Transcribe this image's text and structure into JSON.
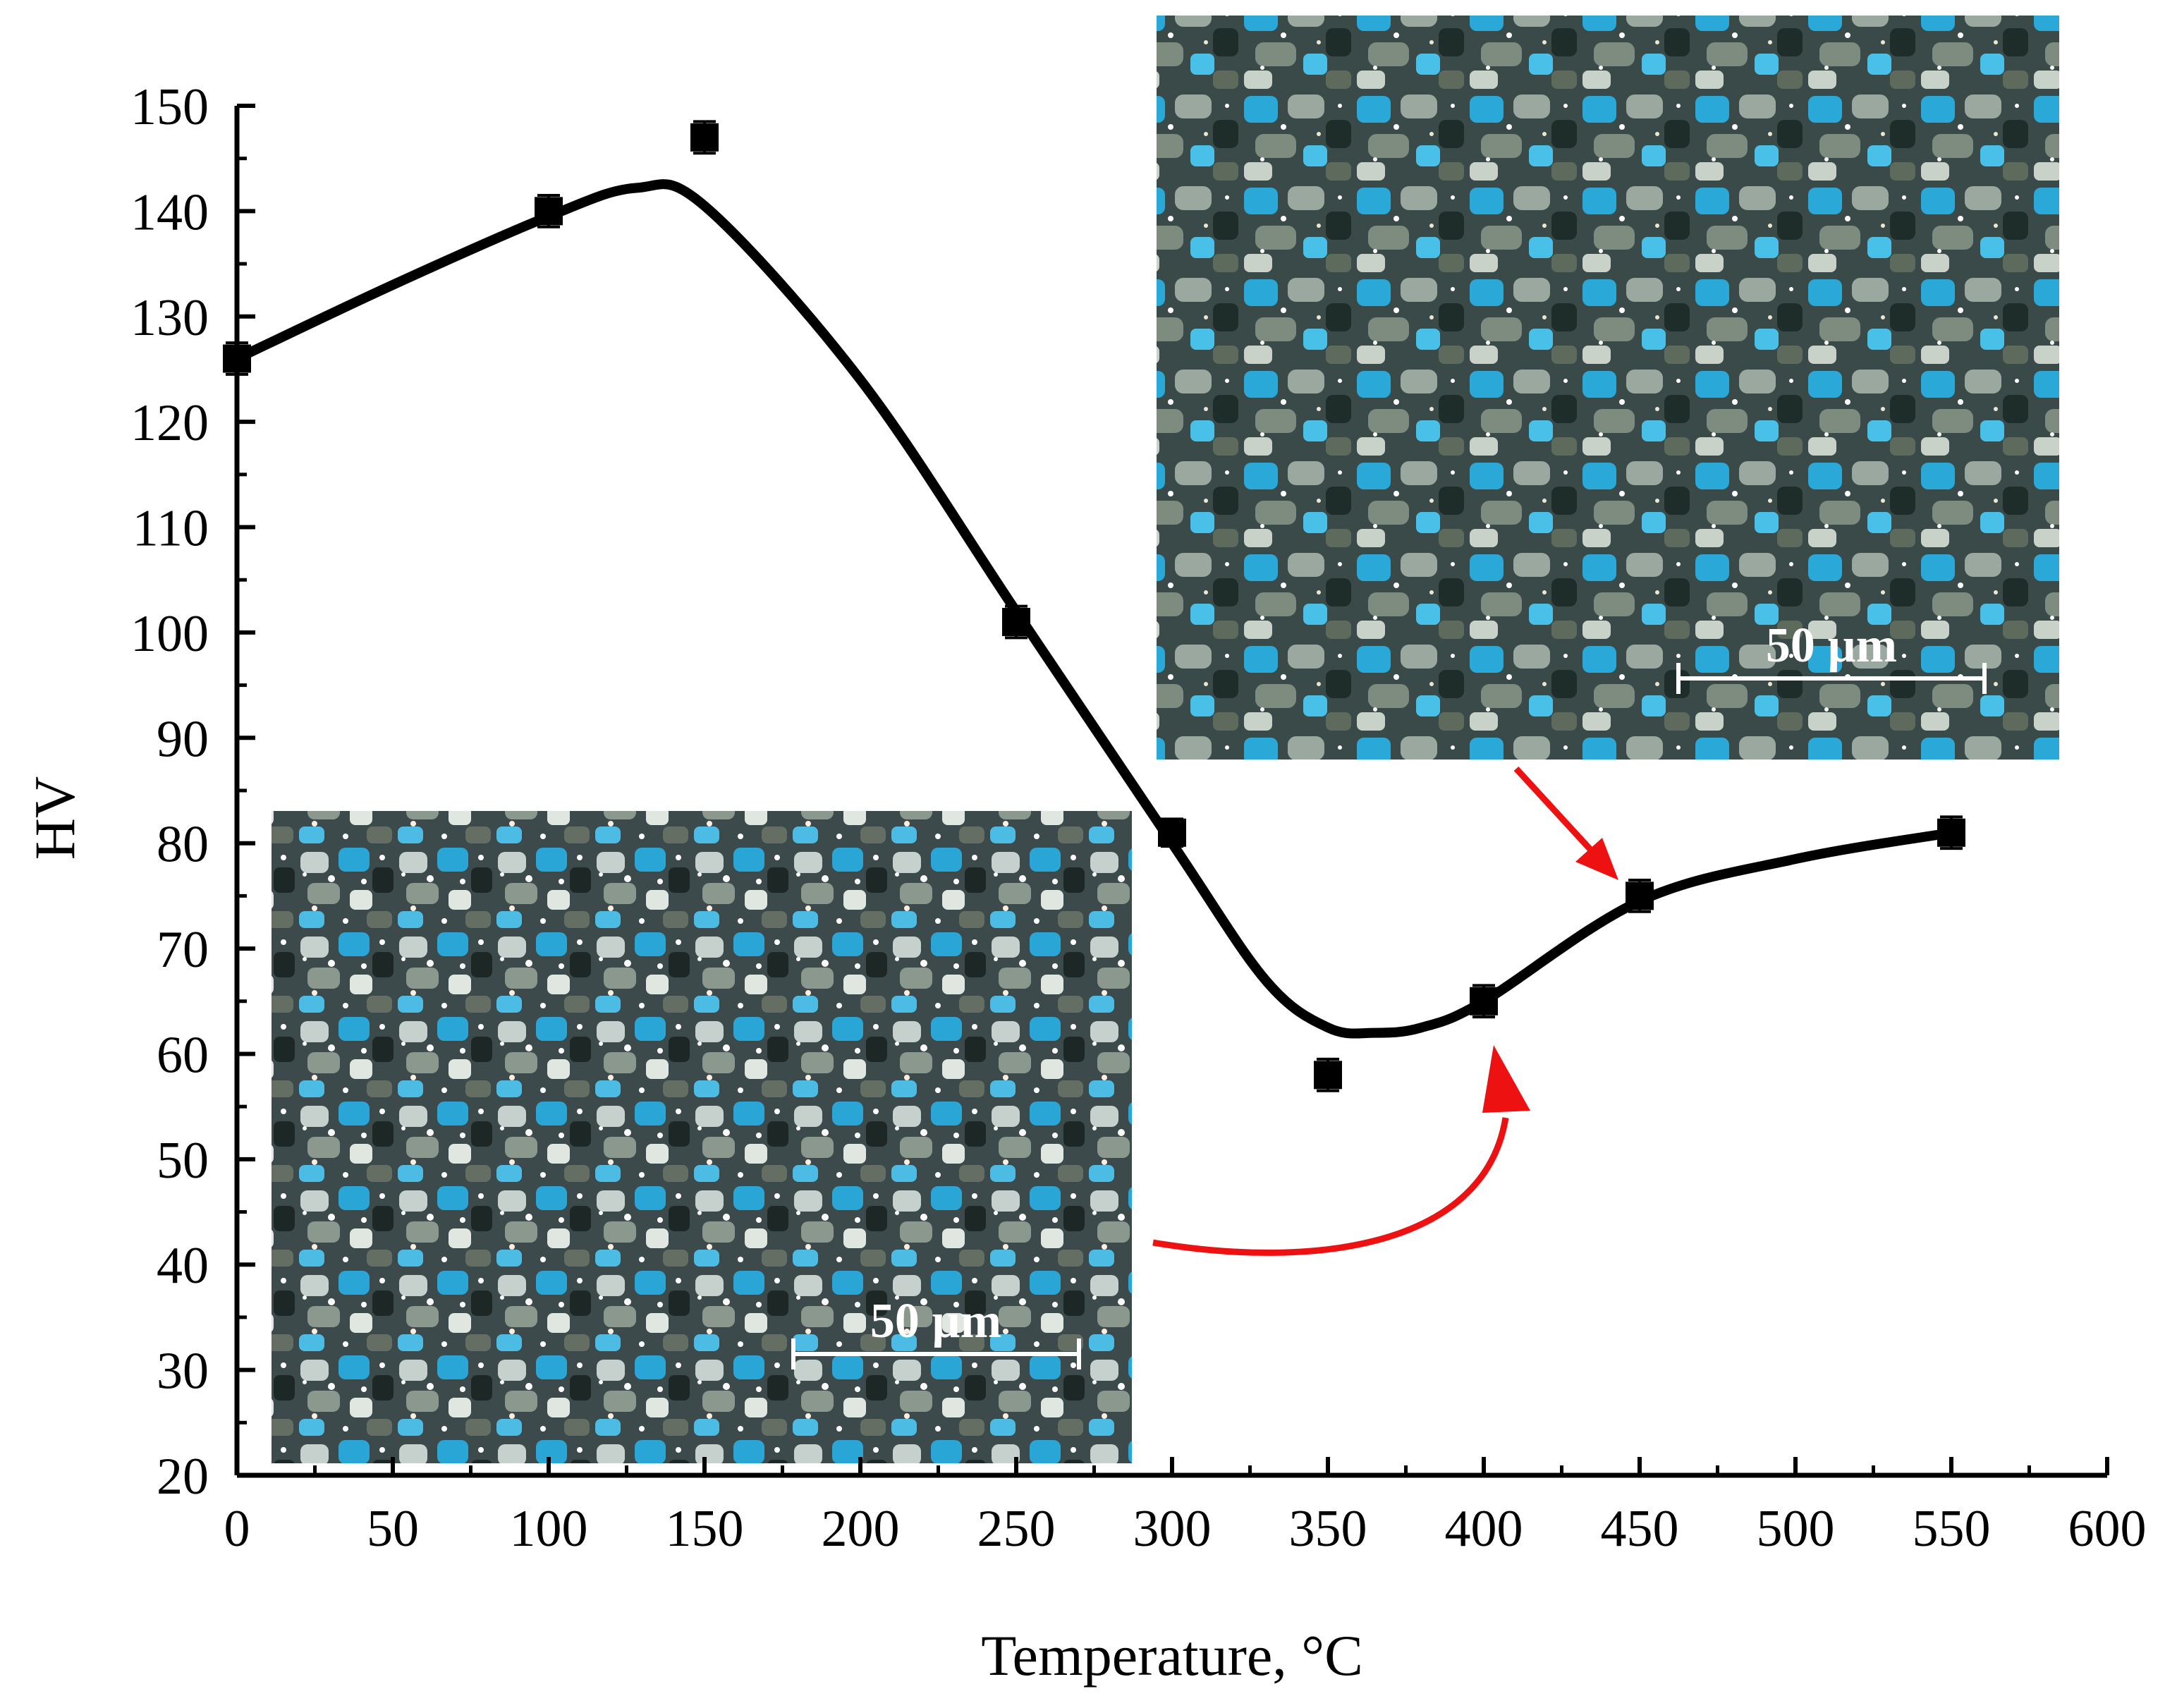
{
  "chart_data": {
    "type": "scatter",
    "title": "",
    "xlabel": "Temperature, °C",
    "ylabel": "HV",
    "xlim": [
      0,
      600
    ],
    "ylim": [
      20,
      150
    ],
    "xticks": [
      0,
      50,
      100,
      150,
      200,
      250,
      300,
      350,
      400,
      450,
      500,
      550,
      600
    ],
    "yticks": [
      20,
      30,
      40,
      50,
      60,
      70,
      80,
      90,
      100,
      110,
      120,
      130,
      140,
      150
    ],
    "grid": false,
    "legend": "none",
    "series": [
      {
        "marker": "square",
        "color": "#000000",
        "x": [
          0,
          100,
          150,
          250,
          300,
          350,
          400,
          450,
          550
        ],
        "y": [
          126,
          140,
          147,
          101,
          81,
          58,
          65,
          75,
          81
        ],
        "error": [
          1.5,
          1.5,
          1.5,
          1.5,
          1.3,
          1.5,
          1.5,
          1.5,
          1.5
        ]
      }
    ],
    "fit_curve": {
      "color": "#000000",
      "x": [
        0,
        50,
        100,
        128,
        150,
        200,
        250,
        300,
        330,
        350,
        365,
        380,
        400,
        450,
        500,
        550
      ],
      "y": [
        126,
        133,
        139.5,
        142.2,
        140.5,
        124,
        102,
        80,
        67,
        62.5,
        62,
        62.5,
        65,
        74.5,
        78.5,
        81
      ]
    },
    "insets": [
      {
        "position": "top-right",
        "scale_bar_label": "50 µm",
        "points_to": {
          "x": 450,
          "y": 75
        }
      },
      {
        "position": "bottom-left",
        "scale_bar_label": "50 µm",
        "points_to": {
          "x": 400,
          "y": 65
        }
      }
    ],
    "arrow_color": "#ee1111"
  }
}
